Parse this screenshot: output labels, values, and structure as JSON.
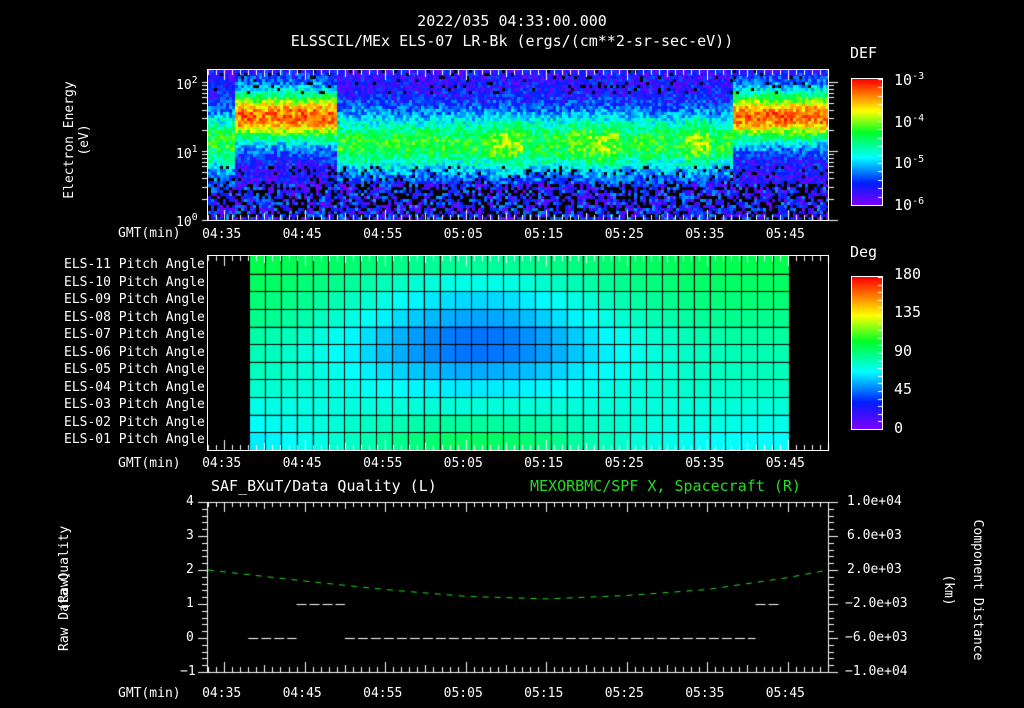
{
  "header": {
    "date_time": "2022/035 04:33:00.000",
    "subtitle": "ELSSCIL/MEx ELS-07 LR-Bk  (ergs/(cm**2-sr-sec-eV))"
  },
  "time_axis": {
    "label": "GMT(min)",
    "ticks": [
      "04:35",
      "04:45",
      "04:55",
      "05:05",
      "05:15",
      "05:25",
      "05:35",
      "05:45"
    ]
  },
  "panel1": {
    "ylabel_line1": "Electron Energy",
    "ylabel_line2": "(eV)",
    "yticks": [
      {
        "base": "10",
        "exp": "2"
      },
      {
        "base": "10",
        "exp": "1"
      },
      {
        "base": "10",
        "exp": "0"
      }
    ],
    "colorbar": {
      "title": "DEF",
      "ticks": [
        {
          "base": "10",
          "exp": "-3"
        },
        {
          "base": "10",
          "exp": "-4"
        },
        {
          "base": "10",
          "exp": "-5"
        },
        {
          "base": "10",
          "exp": "-6"
        }
      ]
    }
  },
  "panel2": {
    "row_labels": [
      "ELS-11 Pitch Angle",
      "ELS-10 Pitch Angle",
      "ELS-09 Pitch Angle",
      "ELS-08 Pitch Angle",
      "ELS-07 Pitch Angle",
      "ELS-06 Pitch Angle",
      "ELS-05 Pitch Angle",
      "ELS-04 Pitch Angle",
      "ELS-03 Pitch Angle",
      "ELS-02 Pitch Angle",
      "ELS-01 Pitch Angle"
    ],
    "colorbar": {
      "title": "Deg",
      "ticks": [
        "180",
        "135",
        "90",
        "45",
        "0"
      ]
    }
  },
  "panel3": {
    "left_title": "SAF_BXuT/Data Quality (L)",
    "right_title": "MEXORBMC/SPF X, Spacecraft (R)",
    "ylabel_left_line1": "Raw Data Quality",
    "ylabel_left_line2": "(Raw)",
    "ylabel_right_line1": "Component Distance",
    "ylabel_right_line2": "(km)",
    "yticks_left": [
      "4",
      "3",
      "2",
      "1",
      "0",
      "−1"
    ],
    "yticks_right": [
      "1.0e+04",
      "6.0e+03",
      "2.0e+03",
      "−2.0e+03",
      "−6.0e+03",
      "−1.0e+04"
    ]
  },
  "colors": {
    "background": "#000000",
    "axes": "#ffffff",
    "spacecraft_line": "#22dd22",
    "quality_line": "#ffffff"
  },
  "chart_data": [
    {
      "type": "heatmap",
      "title": "ELSSCIL/MEx ELS-07 LR-Bk (ergs/(cm**2-sr-sec-eV))",
      "xlabel": "GMT(min)",
      "ylabel": "Electron Energy (eV)",
      "x_range": [
        "04:33",
        "05:50"
      ],
      "y_scale": "log",
      "ylim": [
        1,
        150
      ],
      "colorbar": {
        "label": "DEF",
        "scale": "log",
        "range": [
          1e-06,
          0.001
        ]
      },
      "description": "Band of enhanced flux ~15-50 eV; strongest (1e-4 to 3e-4) 04:36-04:49 and 05:40-05:50; weaker (~1e-5) 04:50-05:35 with bursts near 05:10-05:30; low flux below ~4 eV."
    },
    {
      "type": "heatmap",
      "title": "Pitch Angle",
      "xlabel": "GMT(min)",
      "categories": [
        "ELS-11",
        "ELS-10",
        "ELS-09",
        "ELS-08",
        "ELS-07",
        "ELS-06",
        "ELS-05",
        "ELS-04",
        "ELS-03",
        "ELS-02",
        "ELS-01"
      ],
      "x_range": [
        "04:38",
        "05:45"
      ],
      "colorbar": {
        "label": "Deg",
        "range": [
          0,
          180
        ]
      },
      "center_times_min": [
        38,
        78
      ],
      "values_deg_start": [
        100,
        98,
        95,
        92,
        88,
        85,
        82,
        78,
        72,
        68,
        62
      ],
      "values_deg_mid": [
        85,
        72,
        62,
        54,
        46,
        46,
        55,
        65,
        75,
        85,
        95
      ],
      "values_deg_end": [
        98,
        95,
        92,
        88,
        85,
        82,
        80,
        78,
        75,
        72,
        68
      ]
    },
    {
      "type": "line",
      "title": "SAF_BXuT/Data Quality (L) ; MEXORBMC/SPF X, Spacecraft (R)",
      "xlabel": "GMT(min)",
      "ylabel_left": "Raw Data Quality (Raw)",
      "ylabel_right": "Component Distance (km)",
      "ylim_left": [
        -1,
        4
      ],
      "ylim_right": [
        -10000,
        10000
      ],
      "series": [
        {
          "name": "Data Quality",
          "axis": "left",
          "segments": [
            {
              "x": [
                "04:38",
                "04:44"
              ],
              "y": 0
            },
            {
              "x": [
                "04:44",
                "04:50"
              ],
              "y": 1
            },
            {
              "x": [
                "04:50",
                "05:41"
              ],
              "y": 0
            },
            {
              "x": [
                "05:41",
                "05:44"
              ],
              "y": 1
            }
          ]
        },
        {
          "name": "SPF X Spacecraft",
          "axis": "right",
          "style": "dashed",
          "x": [
            "04:33",
            "04:45",
            "04:55",
            "05:05",
            "05:15",
            "05:25",
            "05:35",
            "05:45",
            "05:50"
          ],
          "y": [
            2000,
            700,
            -300,
            -1100,
            -1400,
            -1000,
            -300,
            1100,
            2000
          ]
        }
      ]
    }
  ]
}
